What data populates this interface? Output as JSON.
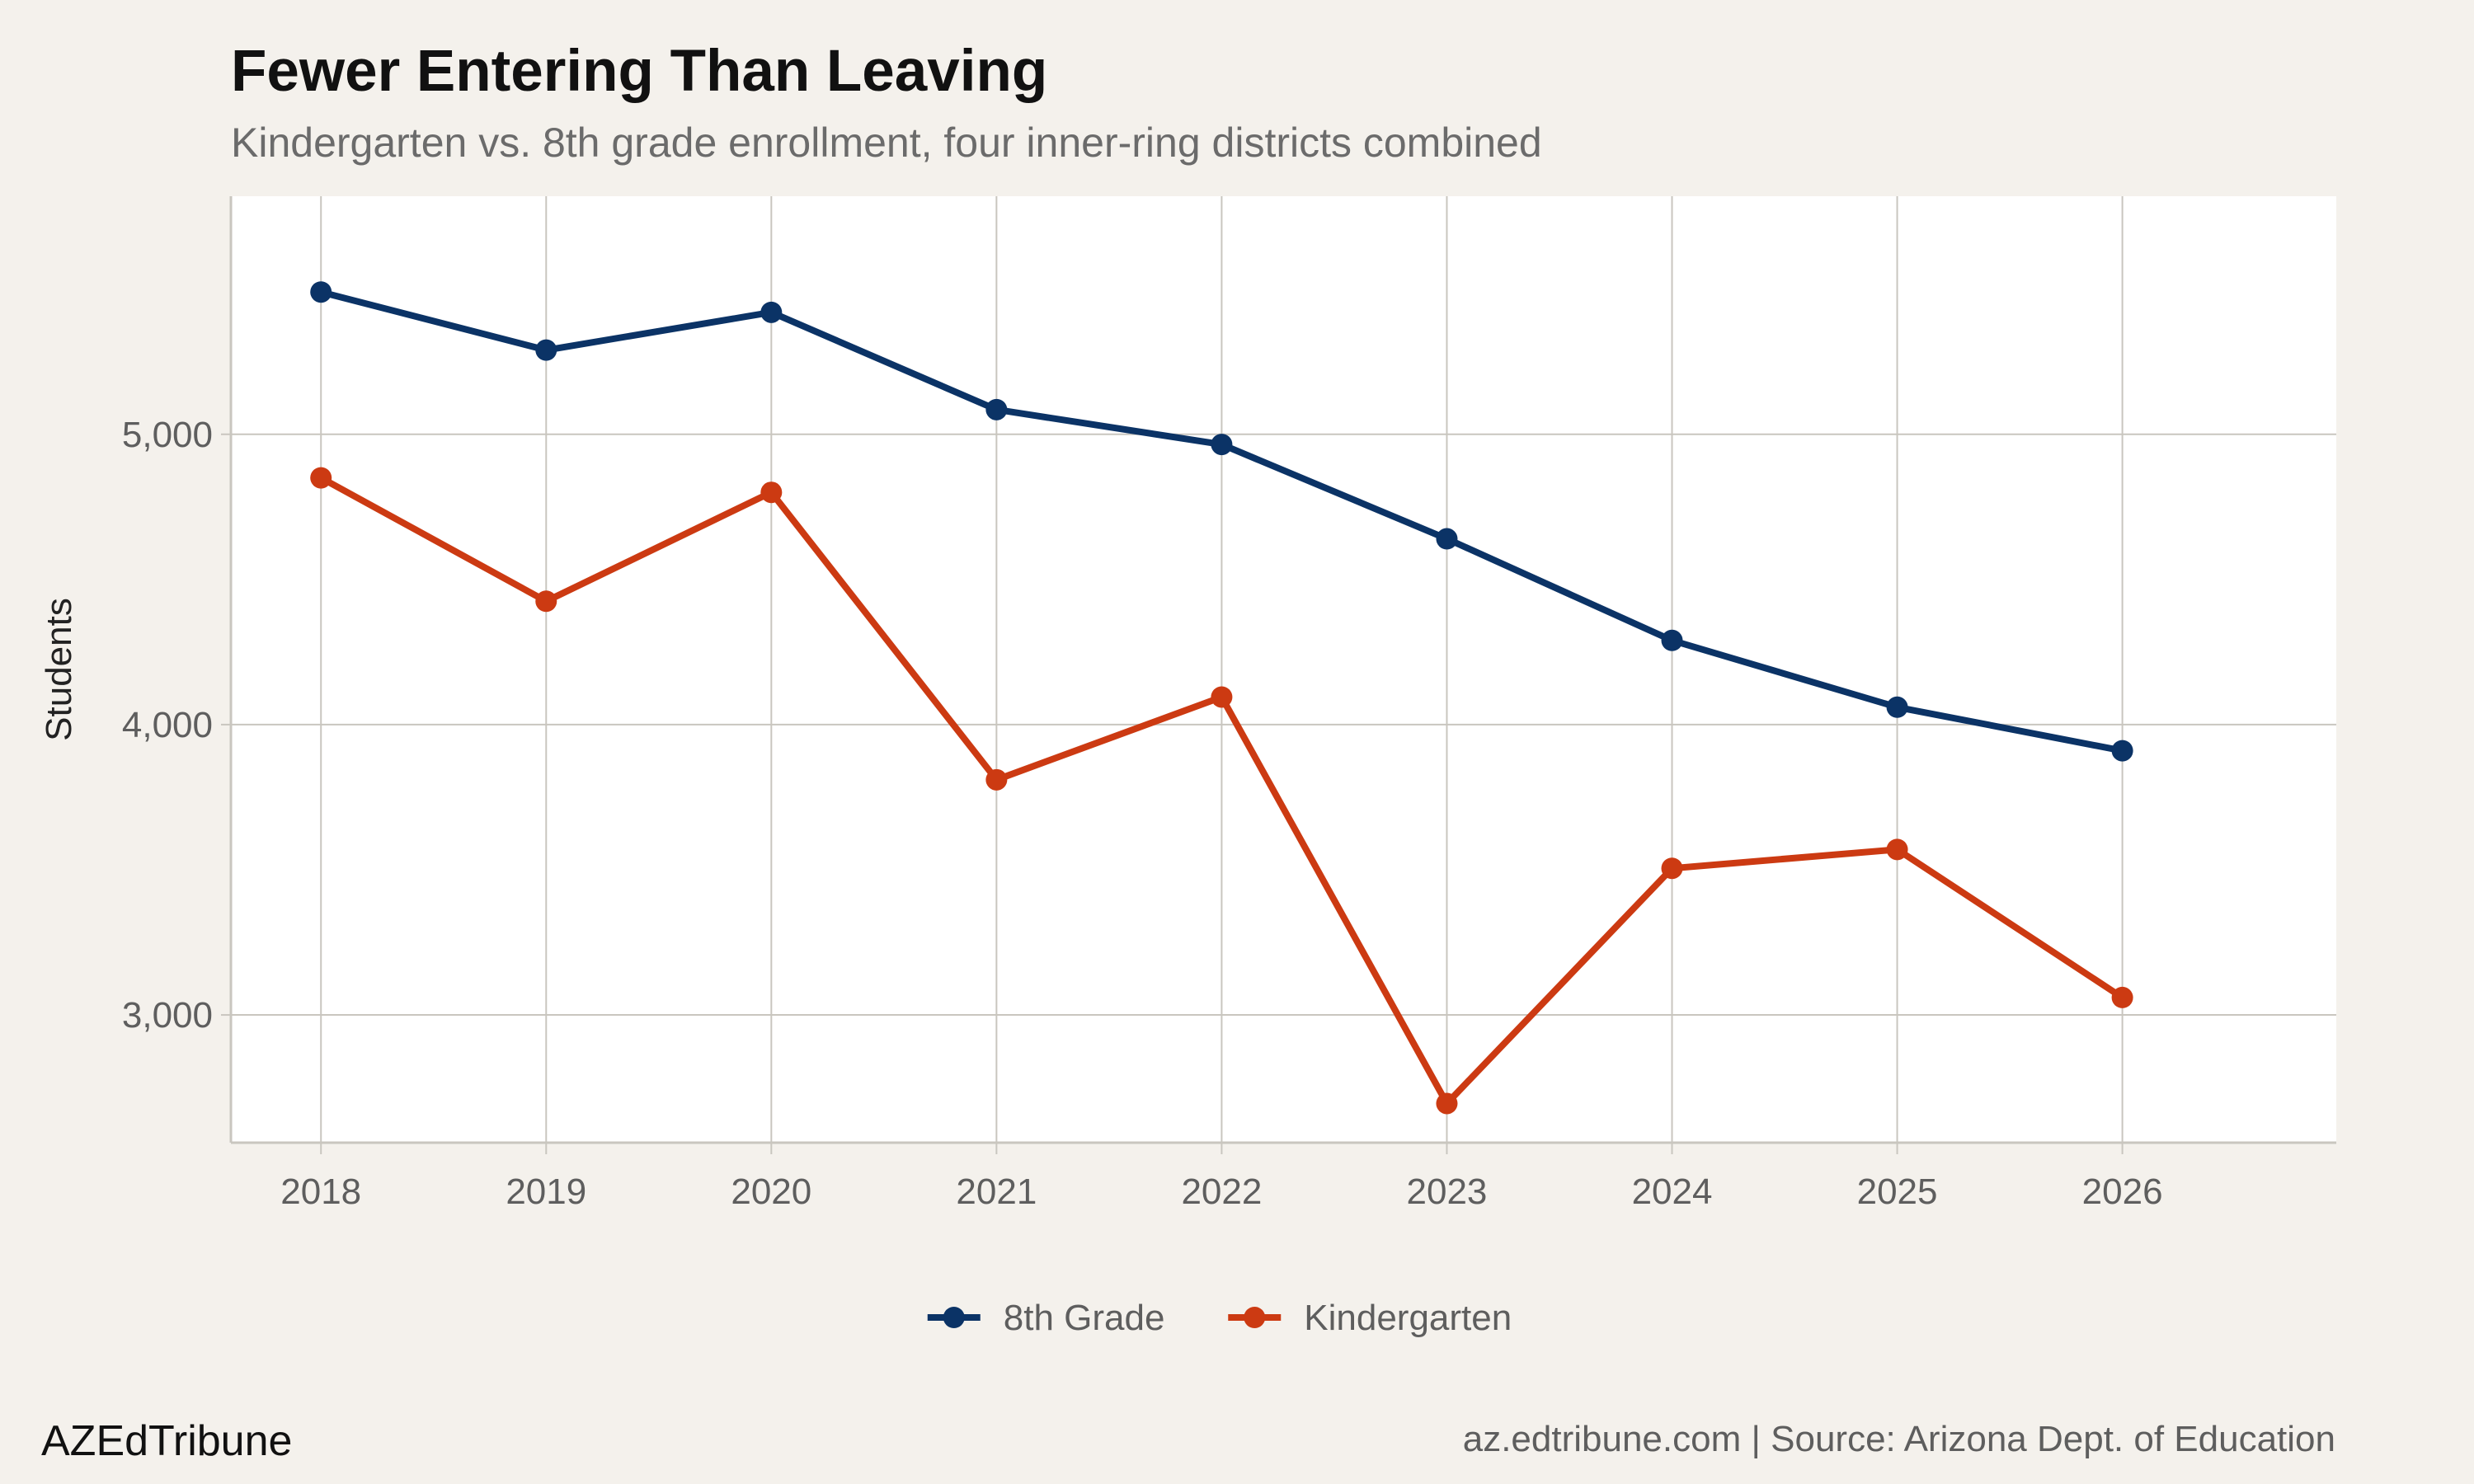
{
  "header": {
    "title": "Fewer Entering Than Leaving",
    "subtitle": "Kindergarten vs. 8th grade enrollment, four inner-ring districts combined"
  },
  "footer": {
    "brand": "AZEdTribune",
    "source": "az.edtribune.com | Source: Arizona Dept. of Education"
  },
  "colors": {
    "background": "#f4f1ec",
    "panel": "#ffffff",
    "grid": "#c9c6bf",
    "eighth_grade": "#0b3366",
    "kindergarten": "#cc3a12"
  },
  "chart_data": {
    "type": "line",
    "title": "Fewer Entering Than Leaving",
    "subtitle": "Kindergarten vs. 8th grade enrollment, four inner-ring districts combined",
    "xlabel": "",
    "ylabel": "Students",
    "x": [
      2018,
      2019,
      2020,
      2021,
      2022,
      2023,
      2024,
      2025,
      2026
    ],
    "x_tick_labels": [
      "2018",
      "2019",
      "2020",
      "2021",
      "2022",
      "2023",
      "2024",
      "2025",
      "2026"
    ],
    "xlim": [
      2017.6,
      2026.95
    ],
    "ylim": [
      2560,
      5820
    ],
    "y_ticks": [
      3000,
      4000,
      5000
    ],
    "y_tick_labels": [
      "3,000",
      "4,000",
      "5,000"
    ],
    "grid": true,
    "legend_position": "bottom",
    "series": [
      {
        "name": "8th Grade",
        "color": "#0b3366",
        "values": [
          5490,
          5290,
          5420,
          5085,
          4965,
          4640,
          4290,
          4060,
          3910
        ]
      },
      {
        "name": "Kindergarten",
        "color": "#cc3a12",
        "values": [
          4850,
          4425,
          4800,
          3810,
          4095,
          2695,
          3505,
          3570,
          3060
        ]
      }
    ]
  }
}
